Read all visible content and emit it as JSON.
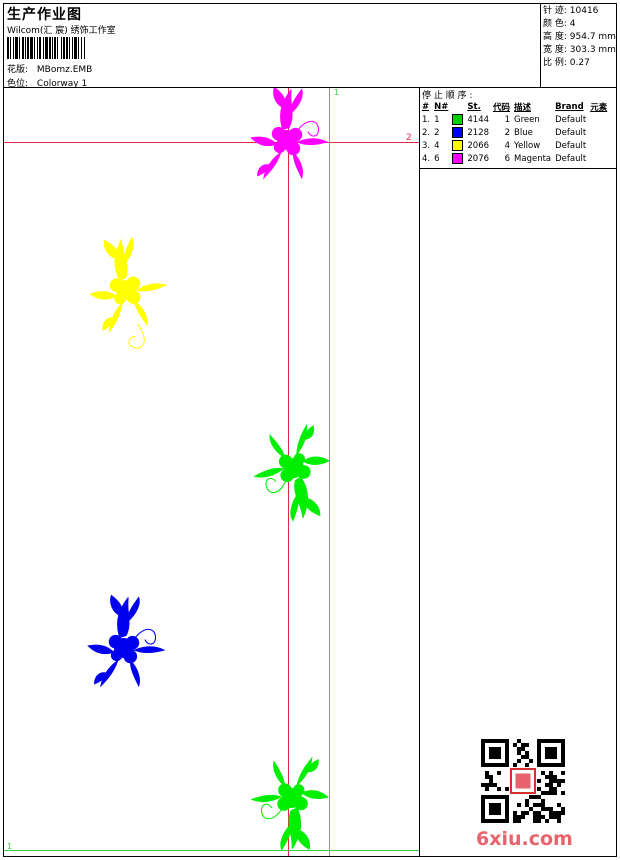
{
  "header": {
    "title": "生产作业图",
    "company": "Wilcom(汇 宸) 绣饰工作室",
    "design_label": "花版:",
    "design_value": "MBomz.EMB",
    "colorway_label": "色位:",
    "colorway_value": "Colorway 1"
  },
  "stats": {
    "stitches_label": "针 迹:",
    "stitches_value": "10416",
    "colors_label": "颜 色:",
    "colors_value": "4",
    "height_label": "高 度:",
    "height_value": "954.7 mm",
    "width_label": "宽 度:",
    "width_value": "303.3 mm",
    "scale_label": "比 例:",
    "scale_value": "0.27"
  },
  "stop_sequence": {
    "title": "停 止 顺 序 :",
    "headers": [
      "#",
      "N#",
      "St.",
      "代码",
      "描述",
      "Brand",
      "元素"
    ],
    "rows": [
      {
        "idx": "1.",
        "n": "1",
        "color": "#00d000",
        "st": "4144",
        "code": "1",
        "desc": "Green",
        "brand": "Default"
      },
      {
        "idx": "2.",
        "n": "2",
        "color": "#0000ff",
        "st": "2128",
        "code": "2",
        "desc": "Blue",
        "brand": "Default"
      },
      {
        "idx": "3.",
        "n": "4",
        "color": "#ffff00",
        "st": "2066",
        "code": "4",
        "desc": "Yellow",
        "brand": "Default"
      },
      {
        "idx": "4.",
        "n": "6",
        "color": "#ff00ff",
        "st": "2076",
        "code": "6",
        "desc": "Magenta",
        "brand": "Default"
      }
    ]
  },
  "canvas": {
    "marker_top_right": "1",
    "marker_red": "2",
    "marker_bottom_left": "1"
  },
  "colors": {
    "green": "#00ee00",
    "blue": "#0000ee",
    "yellow": "#ffff00",
    "magenta": "#ff00ff",
    "guide_green": "#35d04a",
    "guide_red": "#e2284a"
  },
  "watermark": "6xiu.com"
}
